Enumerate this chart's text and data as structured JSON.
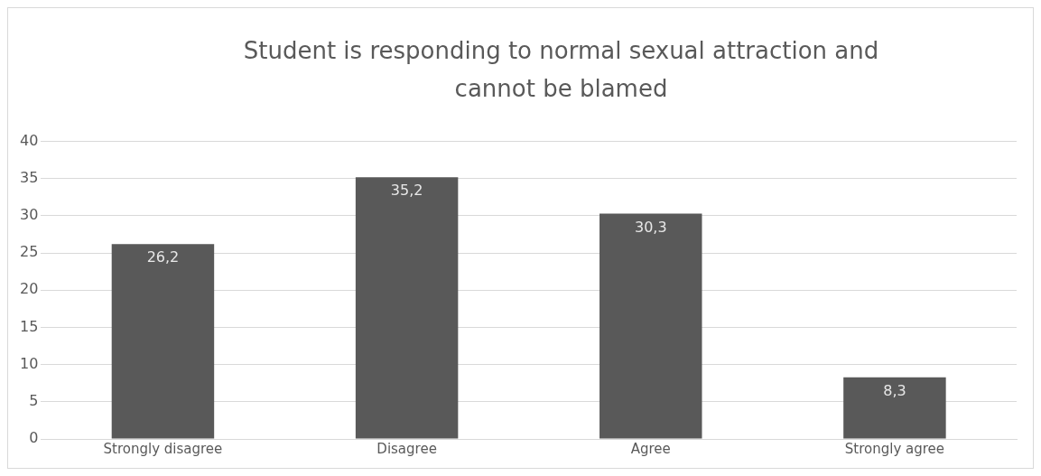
{
  "chart_data": {
    "type": "bar",
    "title": "Student is responding to normal sexual attraction and cannot be blamed",
    "categories": [
      "Strongly disagree",
      "Disagree",
      "Agree",
      "Strongly agree"
    ],
    "values": [
      26.2,
      35.2,
      30.3,
      8.3
    ],
    "value_labels": [
      "26,2",
      "35,2",
      "30,3",
      "8,3"
    ],
    "color": "#595959",
    "ylim": [
      0,
      40
    ],
    "yticks": [
      0,
      5,
      10,
      15,
      20,
      25,
      30,
      35,
      40
    ],
    "grid": "y",
    "legend": false
  }
}
